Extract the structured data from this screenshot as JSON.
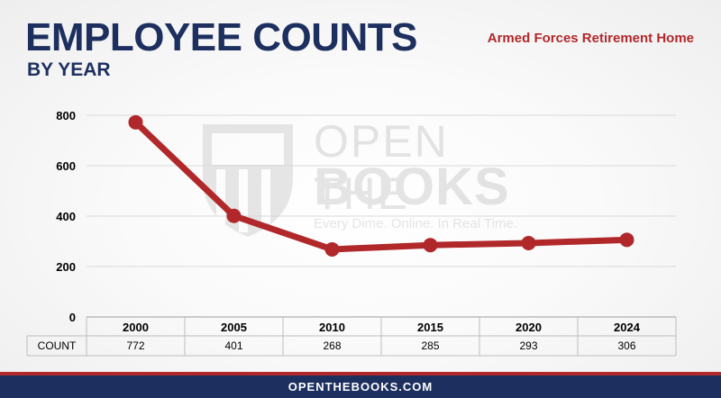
{
  "header": {
    "title": "EMPLOYEE COUNTS",
    "subtitle": "BY YEAR",
    "agency": "Armed Forces Retirement Home"
  },
  "watermark": {
    "line1": "OPEN THE",
    "line2": "BOOKS",
    "tagline": "Every Dime. Online. In Real Time."
  },
  "footer": {
    "url": "OPENTHEBOOKS.COM"
  },
  "colors": {
    "navy": "#1c2f5e",
    "red": "#b1282b"
  },
  "chart_data": {
    "type": "line",
    "categories": [
      "2000",
      "2005",
      "2010",
      "2015",
      "2020",
      "2024"
    ],
    "values": [
      772,
      401,
      268,
      285,
      293,
      306
    ],
    "row_label": "COUNT",
    "ylim": [
      0,
      800
    ],
    "yticks": [
      0,
      200,
      400,
      600,
      800
    ],
    "grid": true,
    "line_color": "#b1282b"
  }
}
